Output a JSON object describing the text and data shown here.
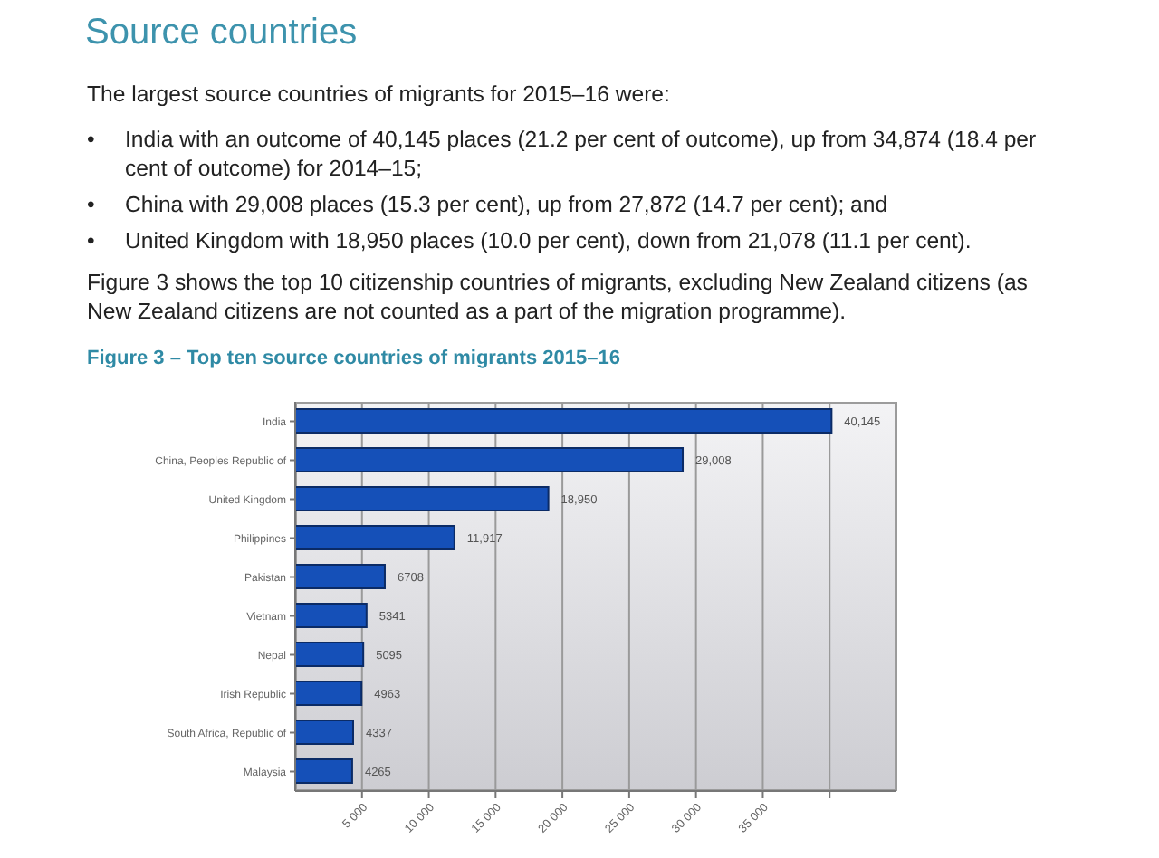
{
  "chart_data": {
    "type": "bar",
    "orientation": "horizontal",
    "title": "Source countries",
    "subtitle": "Figure 3 – Top ten source countries of migrants 2015–16",
    "annotations": [
      "The largest source countries of migrants for 2015–16 were:",
      "•\tIndia with an outcome of 40,145 places (21.2 per cent of outcome), up from 34,874 (18.4 per cent of outcome) for 2014–15;",
      "•\tChina with 29,008 places (15.3 per cent), up from 27,872 (14.7 per cent); and",
      "•\tUnited Kingdom with 18,950 places (10.0 per cent), down from 21,078 (11.1 per cent).",
      "Figure 3 shows the top 10 citizenship countries of migrants, excluding New Zealand citizens (as New Zealand citizens are not counted as a part of the migration programme)."
    ],
    "categories": [
      "India",
      "China, Peoples Republic of",
      "United Kingdom",
      "Philippines",
      "Pakistan",
      "Vietnam",
      "Nepal",
      "Irish Republic",
      "South Africa, Republic of",
      "Malaysia"
    ],
    "values": [
      40145,
      29008,
      18950,
      11917,
      6708,
      5341,
      5095,
      4963,
      4337,
      4265
    ],
    "value_labels": [
      "40,145",
      "29,008",
      "18,950",
      "11,917",
      "6708",
      "5341",
      "5095",
      "4963",
      "4337",
      "4265"
    ],
    "color": "#1550b8",
    "xlim": [
      0,
      45000
    ],
    "xticks": [
      {
        "value": 5000,
        "label": "5 000"
      },
      {
        "value": 10000,
        "label": "10 000"
      },
      {
        "value": 15000,
        "label": "15 000"
      },
      {
        "value": 20000,
        "label": "20 000"
      },
      {
        "value": 25000,
        "label": "25 000"
      },
      {
        "value": 30000,
        "label": "30 000"
      },
      {
        "value": 35000,
        "label": "35 000"
      },
      {
        "value": 40000,
        "label": null
      }
    ],
    "grid": "x"
  }
}
